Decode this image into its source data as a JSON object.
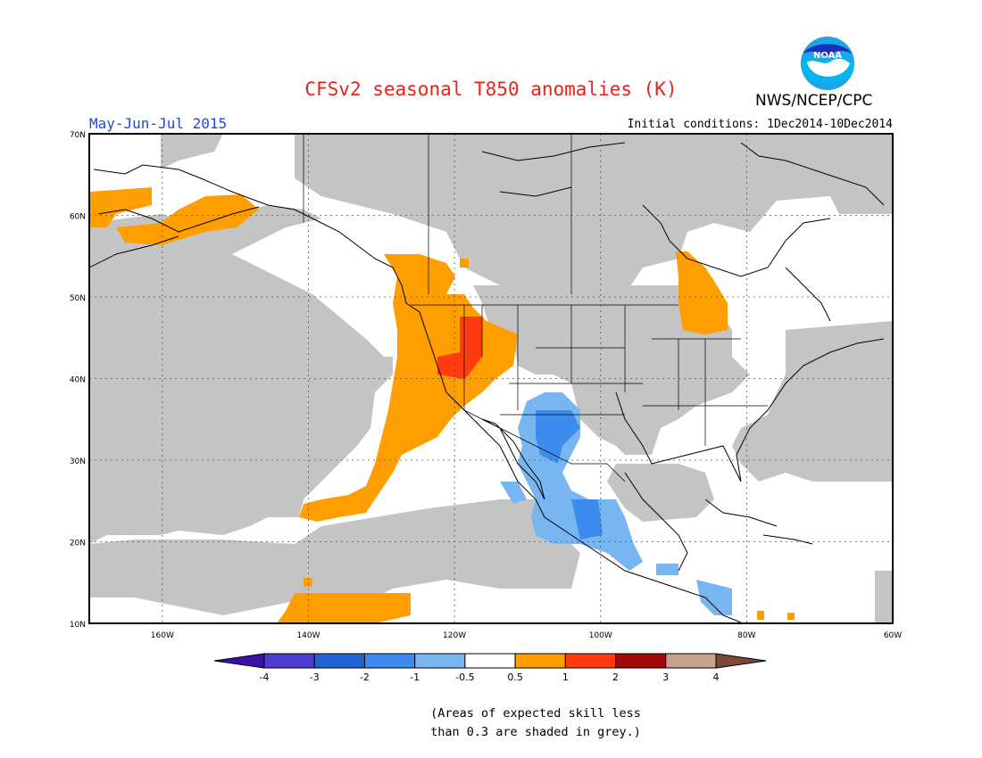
{
  "header": {
    "title": "CFSv2 seasonal T850 anomalies (K)",
    "organization": "NWS/NCEP/CPC",
    "logo_text": "NOAA",
    "season": "May-Jun-Jul 2015",
    "initial_conditions": "Initial conditions: 1Dec2014-10Dec2014"
  },
  "map": {
    "region": "North America and eastern Pacific",
    "lon_range": [
      -170,
      -60
    ],
    "lat_range": [
      10,
      70
    ],
    "lat_ticks": [
      {
        "value": 70,
        "label": "70N"
      },
      {
        "value": 60,
        "label": "60N"
      },
      {
        "value": 50,
        "label": "50N"
      },
      {
        "value": 40,
        "label": "40N"
      },
      {
        "value": 30,
        "label": "30N"
      },
      {
        "value": 20,
        "label": "20N"
      },
      {
        "value": 10,
        "label": "10N"
      }
    ],
    "lon_ticks": [
      {
        "value": -160,
        "label": "160W"
      },
      {
        "value": -140,
        "label": "140W"
      },
      {
        "value": -120,
        "label": "120W"
      },
      {
        "value": -100,
        "label": "100W"
      },
      {
        "value": -80,
        "label": "80W"
      },
      {
        "value": -60,
        "label": "60W"
      }
    ],
    "grid": "dotted",
    "low_skill_color": "#c4c4c4"
  },
  "colorbar": {
    "levels": [
      "-4",
      "-3",
      "-2",
      "-1",
      "-0.5",
      "0.5",
      "1",
      "2",
      "3",
      "4"
    ],
    "colors": [
      "#3b0fa8",
      "#4a3fcf",
      "#1e64d4",
      "#3c8cef",
      "#78b6f2",
      "#ffffff",
      "#ff9e00",
      "#ff3c0f",
      "#a00a0a",
      "#c9a18e",
      "#7a4a36"
    ]
  },
  "footnote": {
    "line1": "(Areas of expected skill less",
    "line2": "than 0.3 are shaded in grey.)"
  }
}
